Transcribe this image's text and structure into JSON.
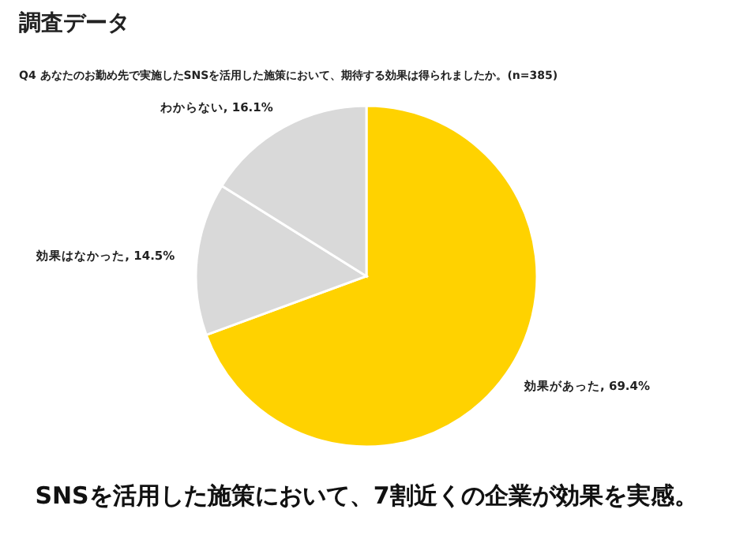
{
  "chart_data": {
    "type": "pie",
    "title": "調査データ",
    "subtitle": "Q4 あなたのお勤め先で実施したSNSを活用した施策において、期待する効果は得られましたか。(n=385)",
    "categories": [
      "効果があった",
      "効果はなかった",
      "わからない"
    ],
    "values": [
      69.4,
      14.5,
      16.1
    ],
    "colors": [
      "#ffd200",
      "#d9d9d9",
      "#d9d9d9"
    ],
    "value_labels": [
      "69.4%",
      "14.5%",
      "16.1%"
    ],
    "annotations": [
      "SNSを活用した施策において、7割近くの企業が効果を実感。"
    ],
    "legend": false
  }
}
